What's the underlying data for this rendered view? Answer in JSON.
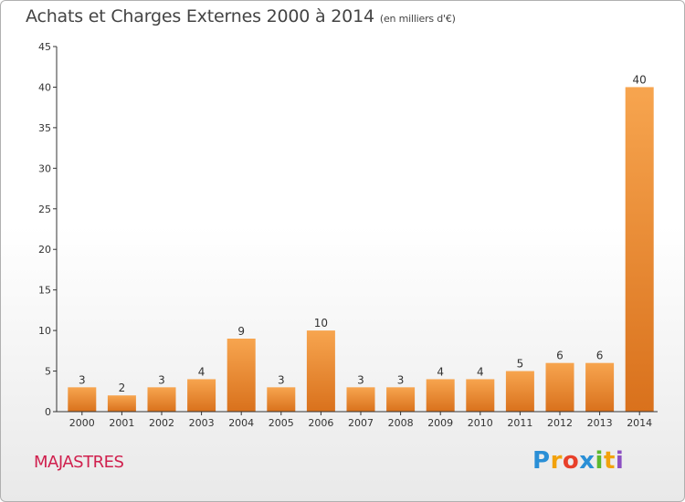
{
  "title": "Achats et Charges Externes 2000 à 2014",
  "unit_label": "(en milliers d'€)",
  "town": "MAJASTRES",
  "logo": {
    "letters": [
      "P",
      "r",
      "o",
      "x",
      "i",
      "t",
      "i"
    ],
    "colors": [
      "#2a8fd6",
      "#f2a20c",
      "#e8402a",
      "#2a8fd6",
      "#5cb82e",
      "#f2a20c",
      "#8c4fc2"
    ]
  },
  "colors": {
    "bar_top": "#f7a54f",
    "bar_bottom": "#d9711c",
    "axis": "#333333"
  },
  "chart_data": {
    "type": "bar",
    "title": "Achats et Charges Externes 2000 à 2014",
    "subtitle": "(en milliers d'€)",
    "categories": [
      "2000",
      "2001",
      "2002",
      "2003",
      "2004",
      "2005",
      "2006",
      "2007",
      "2008",
      "2009",
      "2010",
      "2011",
      "2012",
      "2013",
      "2014"
    ],
    "values": [
      3,
      2,
      3,
      4,
      9,
      3,
      10,
      3,
      3,
      4,
      4,
      5,
      6,
      6,
      40
    ],
    "ylim": [
      0,
      45
    ],
    "yticks": [
      0,
      5,
      10,
      15,
      20,
      25,
      30,
      35,
      40,
      45
    ],
    "grid": false,
    "data_labels": true
  }
}
